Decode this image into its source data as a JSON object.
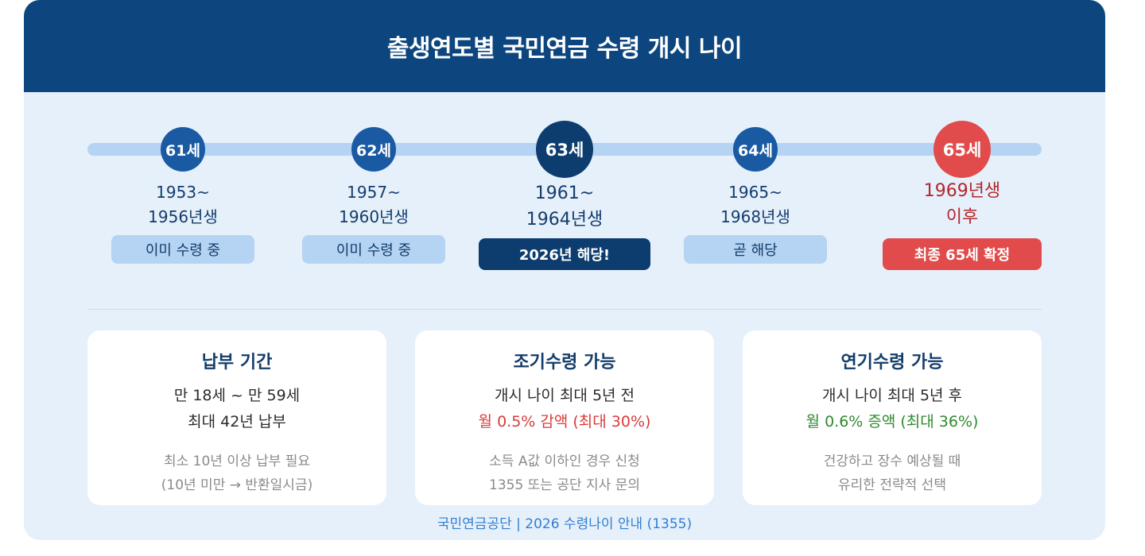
{
  "title": "출생연도별 국민연금 수령 개시 나이",
  "timeline": [
    {
      "age": "61세",
      "years_line1": "1953~",
      "years_line2": "1956년생",
      "status": "이미 수령 중"
    },
    {
      "age": "62세",
      "years_line1": "1957~",
      "years_line2": "1960년생",
      "status": "이미 수령 중"
    },
    {
      "age": "63세",
      "years_line1": "1961~",
      "years_line2": "1964년생",
      "status": "2026년 해당!"
    },
    {
      "age": "64세",
      "years_line1": "1965~",
      "years_line2": "1968년생",
      "status": "곧 해당"
    },
    {
      "age": "65세",
      "years_line1": "1969년생",
      "years_line2": "이후",
      "status": "최종 65세 확정"
    }
  ],
  "cards": [
    {
      "title": "납부 기간",
      "line1": "만 18세 ~ 만 59세",
      "line2": "최대 42년 납부",
      "note1": "최소 10년 이상 납부 필요",
      "note2": "(10년 미만 → 반환일시금)"
    },
    {
      "title": "조기수령 가능",
      "line1": "개시 나이 최대 5년 전",
      "line2": "월 0.5% 감액 (최대 30%)",
      "note1": "소득 A값 이하인 경우 신청",
      "note2": "1355 또는 공단 지사 문의"
    },
    {
      "title": "연기수령 가능",
      "line1": "개시 나이 최대 5년 후",
      "line2": "월 0.6% 증액 (최대 36%)",
      "note1": "건강하고 장수 예상될 때",
      "note2": "유리한 전략적 선택"
    }
  ],
  "footer": "국민연금공단 | 2026 수령나이 안내 (1355)",
  "colors": {
    "header": "#0d467f",
    "accent_dark": "#0d3d6e",
    "accent": "#1a5aa3",
    "final": "#e24b4b",
    "reduction": "#d93a3a",
    "increase": "#2e8a2e"
  }
}
